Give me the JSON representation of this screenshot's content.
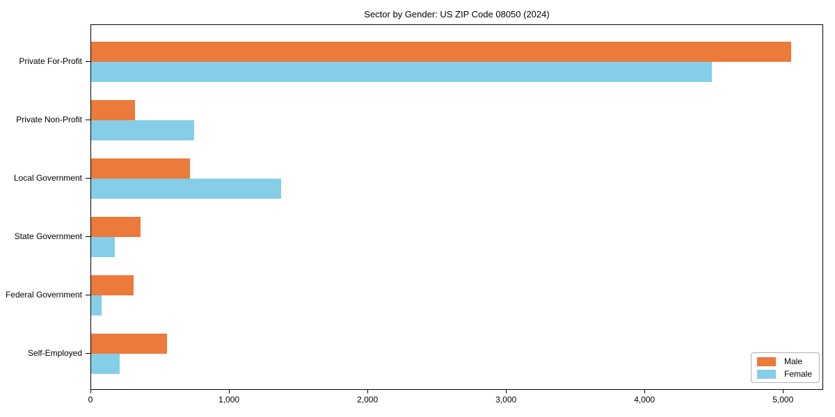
{
  "chart_data": {
    "type": "bar",
    "orientation": "horizontal",
    "title": "Sector by Gender: US ZIP Code 08050 (2024)",
    "categories": [
      "Private For-Profit",
      "Private Non-Profit",
      "Local Government",
      "State Government",
      "Federal Government",
      "Self-Employed"
    ],
    "series": [
      {
        "name": "Male",
        "color": "#EB7A3B",
        "values": [
          5055,
          315,
          712,
          355,
          305,
          548
        ]
      },
      {
        "name": "Female",
        "color": "#85CEE8",
        "values": [
          4480,
          745,
          1370,
          172,
          77,
          205
        ]
      }
    ],
    "xlim": [
      0,
      5290
    ],
    "x_ticks": [
      0,
      1000,
      2000,
      3000,
      4000,
      5000
    ],
    "x_tick_labels": [
      "0",
      "1,000",
      "2,000",
      "3,000",
      "4,000",
      "5,000"
    ],
    "grid": false,
    "legend_position": "lower right",
    "background_color": "#ffffff",
    "axis_color": "#000000"
  }
}
